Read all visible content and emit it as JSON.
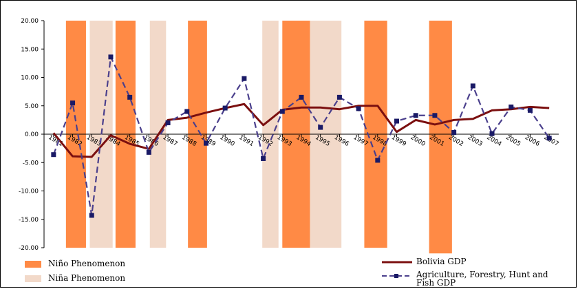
{
  "chart_data": {
    "type": "line",
    "x": [
      "1981",
      "1982",
      "1983",
      "1984",
      "1985",
      "1986",
      "1987",
      "1988",
      "1989",
      "1990",
      "1991",
      "1992",
      "1993",
      "1994",
      "1995",
      "1996",
      "1997",
      "1998",
      "1999",
      "2000",
      "2001",
      "2002",
      "2003",
      "2004",
      "2005",
      "2006",
      "2007"
    ],
    "yticks": [
      "20.00",
      "15.00",
      "10.00",
      "5.00",
      "0.00",
      "-5.00",
      "-10.00",
      "-15.00",
      "-20.00"
    ],
    "ylim": [
      -20,
      20
    ],
    "series": [
      {
        "name": "Bolivia GDP",
        "color": "#7b0f0f",
        "style": "solid",
        "values": [
          0.2,
          -3.9,
          -4.0,
          -0.2,
          -1.7,
          -2.6,
          2.5,
          2.9,
          3.8,
          4.6,
          5.3,
          1.6,
          4.3,
          4.7,
          4.7,
          4.4,
          5.0,
          5.0,
          0.4,
          2.5,
          1.7,
          2.5,
          2.7,
          4.2,
          4.4,
          4.8,
          4.6
        ]
      },
      {
        "name": "Agriculture, Forestry, Hunt and Fish GDP",
        "color": "#4a3f8c",
        "style": "dashed",
        "markers": true,
        "values": [
          -3.6,
          5.5,
          -14.3,
          13.6,
          6.5,
          -3.2,
          2.0,
          4.0,
          -1.6,
          4.6,
          9.8,
          -4.3,
          4.0,
          6.5,
          1.2,
          6.5,
          4.5,
          -4.6,
          2.3,
          3.3,
          3.3,
          0.3,
          8.5,
          0.1,
          4.8,
          4.2,
          -0.7
        ]
      }
    ],
    "bands": [
      {
        "type": "nino",
        "color": "#ff8a45",
        "from": 1981.65,
        "to": 1982.7,
        "ymin": -20,
        "ymax": 20
      },
      {
        "type": "nina",
        "color": "#f2d9c9",
        "from": 1982.9,
        "to": 1984.1,
        "ymin": -20,
        "ymax": 20
      },
      {
        "type": "nino",
        "color": "#ff8a45",
        "from": 1984.25,
        "to": 1985.3,
        "ymin": -20,
        "ymax": 20
      },
      {
        "type": "nina",
        "color": "#f2d9c9",
        "from": 1986.05,
        "to": 1986.9,
        "ymin": -20,
        "ymax": 20
      },
      {
        "type": "nino",
        "color": "#ff8a45",
        "from": 1988.05,
        "to": 1989.05,
        "ymin": -20,
        "ymax": 20
      },
      {
        "type": "nina",
        "color": "#f2d9c9",
        "from": 1991.95,
        "to": 1992.8,
        "ymin": -20,
        "ymax": 20
      },
      {
        "type": "nino",
        "color": "#ff8a45",
        "from": 1993.0,
        "to": 1994.45,
        "ymin": -20,
        "ymax": 20
      },
      {
        "type": "nina",
        "color": "#f2d9c9",
        "from": 1994.45,
        "to": 1996.1,
        "ymin": -20,
        "ymax": 20
      },
      {
        "type": "nino",
        "color": "#ff8a45",
        "from": 1997.3,
        "to": 1998.5,
        "ymin": -20,
        "ymax": 20
      },
      {
        "type": "nino",
        "color": "#ff8a45",
        "from": 2000.7,
        "to": 2001.9,
        "ymin": -21,
        "ymax": 20
      }
    ],
    "legend": [
      {
        "label": "Niño Phenomenon",
        "kind": "swatch",
        "color": "#ff8a45"
      },
      {
        "label": "Niña Phenomenon",
        "kind": "swatch",
        "color": "#f2d9c9"
      },
      {
        "label": "Bolivia GDP",
        "kind": "line",
        "color": "#7b0f0f"
      },
      {
        "label": "Agriculture, Forestry, Hunt and Fish GDP",
        "kind": "dashed",
        "color": "#4a3f8c"
      }
    ],
    "grid": false,
    "legend_position": "bottom"
  }
}
